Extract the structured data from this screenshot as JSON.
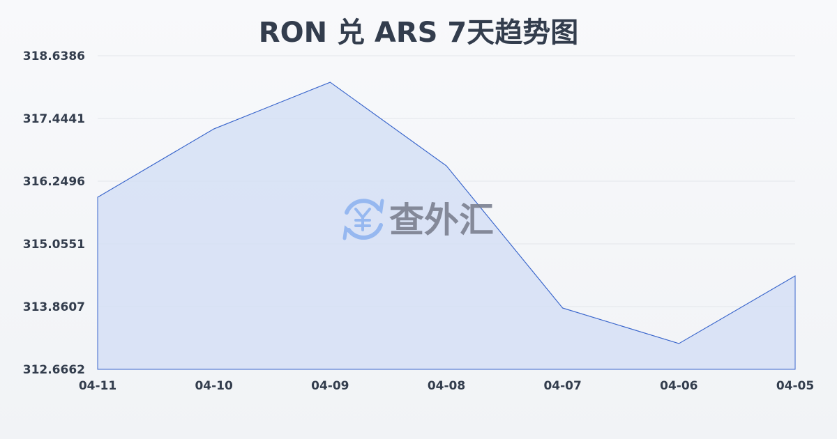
{
  "chart_data": {
    "type": "area",
    "title": "RON 兑 ARS 7天趋势图",
    "categories": [
      "04-11",
      "04-10",
      "04-09",
      "04-08",
      "04-07",
      "04-06",
      "04-05"
    ],
    "values": [
      315.944,
      317.245,
      318.134,
      316.542,
      313.834,
      313.157,
      314.445
    ],
    "yticks": [
      "312.6662",
      "313.8607",
      "315.0551",
      "316.2496",
      "317.4441",
      "318.6386"
    ],
    "ylim": [
      312.6662,
      318.6386
    ],
    "grid": true,
    "line_color": "#3a66cc",
    "fill_color": "#d3dff5"
  },
  "watermark": {
    "text": "查外汇",
    "icon": "yen-exchange-icon",
    "icon_color": "#8fb4f0"
  }
}
